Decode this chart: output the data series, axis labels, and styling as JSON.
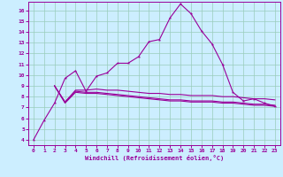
{
  "xlabel": "Windchill (Refroidissement éolien,°C)",
  "xlim": [
    -0.5,
    23.5
  ],
  "ylim": [
    3.5,
    16.8
  ],
  "yticks": [
    4,
    5,
    6,
    7,
    8,
    9,
    10,
    11,
    12,
    13,
    14,
    15,
    16
  ],
  "xticks": [
    0,
    1,
    2,
    3,
    4,
    5,
    6,
    7,
    8,
    9,
    10,
    11,
    12,
    13,
    14,
    15,
    16,
    17,
    18,
    19,
    20,
    21,
    22,
    23
  ],
  "bg_color": "#cceeff",
  "grid_color": "#99ccbb",
  "line_color": "#990099",
  "curve1_x": [
    0,
    1,
    2,
    3,
    4,
    5,
    6,
    7,
    8,
    9,
    10,
    11,
    12,
    13,
    14,
    15,
    16,
    17,
    18,
    19,
    20,
    21,
    22,
    23
  ],
  "curve1_y": [
    4.0,
    5.8,
    7.4,
    9.7,
    10.4,
    8.5,
    9.9,
    10.2,
    11.1,
    11.1,
    11.7,
    13.1,
    13.3,
    15.3,
    16.6,
    15.7,
    14.1,
    12.9,
    11.0,
    8.4,
    7.6,
    7.8,
    7.4,
    7.1
  ],
  "curve2_x": [
    2,
    3,
    4,
    5,
    6,
    7,
    8,
    9,
    10,
    11,
    12,
    13,
    14,
    15,
    16,
    17,
    18,
    19,
    20,
    21,
    22,
    23
  ],
  "curve2_y": [
    9.0,
    7.5,
    8.6,
    8.6,
    8.7,
    8.6,
    8.6,
    8.5,
    8.4,
    8.3,
    8.3,
    8.2,
    8.2,
    8.1,
    8.1,
    8.1,
    8.0,
    8.0,
    7.9,
    7.8,
    7.8,
    7.7
  ],
  "curve3_x": [
    2,
    3,
    4,
    5,
    6,
    7,
    8,
    9,
    10,
    11,
    12,
    13,
    14,
    15,
    16,
    17,
    18,
    19,
    20,
    21,
    22,
    23
  ],
  "curve3_y": [
    9.0,
    7.4,
    8.4,
    8.3,
    8.3,
    8.2,
    8.1,
    8.0,
    7.9,
    7.8,
    7.7,
    7.6,
    7.6,
    7.5,
    7.5,
    7.5,
    7.4,
    7.4,
    7.3,
    7.2,
    7.2,
    7.1
  ],
  "curve4_x": [
    2,
    3,
    4,
    5,
    6,
    7,
    8,
    9,
    10,
    11,
    12,
    13,
    14,
    15,
    16,
    17,
    18,
    19,
    20,
    21,
    22,
    23
  ],
  "curve4_y": [
    9.0,
    7.5,
    8.5,
    8.4,
    8.4,
    8.3,
    8.2,
    8.1,
    8.0,
    7.9,
    7.8,
    7.7,
    7.7,
    7.6,
    7.6,
    7.6,
    7.5,
    7.5,
    7.4,
    7.3,
    7.3,
    7.2
  ]
}
